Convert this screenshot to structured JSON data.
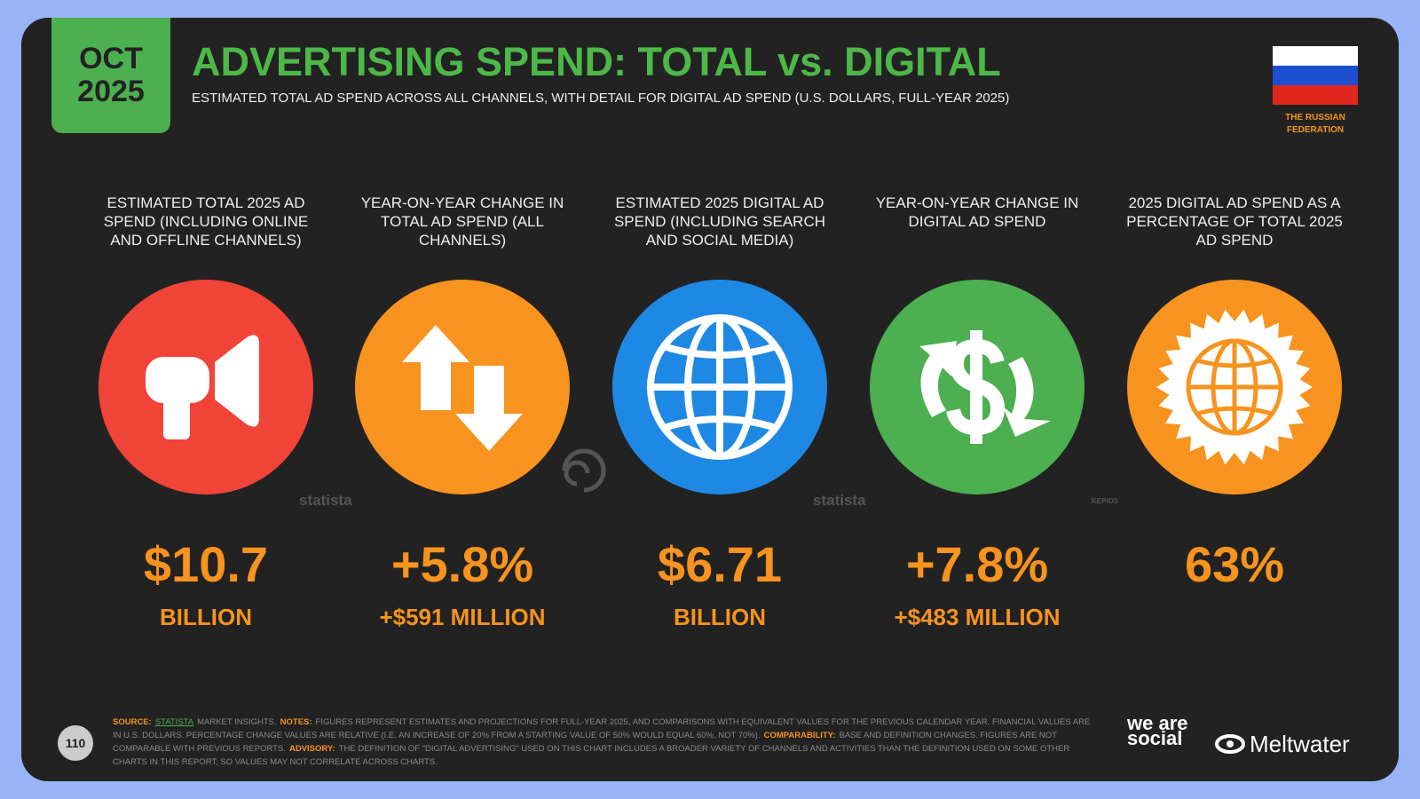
{
  "header": {
    "date_month": "OCT",
    "date_year": "2025",
    "title": "ADVERTISING SPEND: TOTAL vs. DIGITAL",
    "subtitle": "ESTIMATED TOTAL AD SPEND ACROSS ALL CHANNELS, WITH DETAIL FOR DIGITAL AD SPEND (U.S. DOLLARS, FULL-YEAR 2025)",
    "country": "THE RUSSIAN FEDERATION"
  },
  "stats": [
    {
      "label": "ESTIMATED TOTAL 2025 AD SPEND (INCLUDING ONLINE AND OFFLINE CHANNELS)",
      "value": "$10.7",
      "sub": "BILLION"
    },
    {
      "label": "YEAR-ON-YEAR CHANGE IN TOTAL AD SPEND (ALL CHANNELS)",
      "value": "+5.8%",
      "sub": "+$591 MILLION"
    },
    {
      "label": "ESTIMATED 2025 DIGITAL AD SPEND (INCLUDING SEARCH AND SOCIAL MEDIA)",
      "value": "$6.71",
      "sub": "BILLION"
    },
    {
      "label": "YEAR-ON-YEAR CHANGE IN DIGITAL AD SPEND",
      "value": "+7.8%",
      "sub": "+$483 MILLION"
    },
    {
      "label": "2025 DIGITAL AD SPEND AS A PERCENTAGE OF TOTAL 2025 AD SPEND",
      "value": "63%"
    }
  ],
  "watermarks": [
    "statista",
    "statista",
    "KEPIOS"
  ],
  "footer": {
    "page": "110",
    "notes": [
      {
        "label": "SOURCE:",
        "link": "STATISTA",
        "text": "MARKET INSIGHTS."
      },
      {
        "label": "NOTES:",
        "text": "FIGURES REPRESENT ESTIMATES AND PROJECTIONS FOR FULL-YEAR 2025, AND COMPARISONS WITH EQUIVALENT VALUES FOR THE PREVIOUS CALENDAR YEAR. FINANCIAL VALUES ARE IN U.S. DOLLARS. PERCENTAGE CHANGE VALUES ARE RELATIVE (I.E. AN INCREASE OF 20% FROM A STARTING VALUE OF 50% WOULD EQUAL 60%, NOT 70%)."
      },
      {
        "label": "COMPARABILITY:",
        "text": "BASE AND DEFINITION CHANGES. FIGURES ARE NOT COMPARABLE WITH PREVIOUS REPORTS."
      },
      {
        "label": "ADVISORY:",
        "text": "THE DEFINITION OF \"DIGITAL ADVERTISING\" USED ON THIS CHART INCLUDES A BROADER VARIETY OF CHANNELS AND ACTIVITIES THAN THE DEFINITION USED ON SOME OTHER CHARTS IN THIS REPORT, SO VALUES MAY NOT CORRELATE ACROSS CHARTS."
      }
    ],
    "brand_1": "we are social",
    "brand_2": "Meltwater"
  }
}
